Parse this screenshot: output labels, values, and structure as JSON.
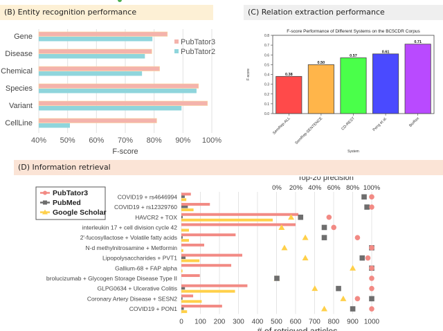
{
  "panels": {
    "b_title": "(B) Entity recognition performance",
    "c_title": "(C) Relation extraction performance",
    "d_title": "(D) Information retrieval"
  },
  "chart_data": [
    {
      "id": "entity",
      "type": "bar",
      "orientation": "horizontal",
      "title": "",
      "categories": [
        "Gene",
        "Disease",
        "Chemical",
        "Species",
        "Variant",
        "CellLine"
      ],
      "series": [
        {
          "name": "PubTator3",
          "color": "#f4b3ac",
          "values": [
            84.6,
            79.2,
            81.9,
            95.4,
            98.5,
            80.9
          ]
        },
        {
          "name": "PubTator2",
          "color": "#8fd5dc",
          "values": [
            79.4,
            76.8,
            75.8,
            94.7,
            89.5,
            50.8
          ]
        }
      ],
      "xlabel": "F-score",
      "ylabel": "",
      "xlim": [
        40,
        100
      ],
      "xticks": [
        "40%",
        "50%",
        "60%",
        "70%",
        "80%",
        "90%",
        "100%"
      ],
      "grid": true,
      "legend": "right"
    },
    {
      "id": "relation",
      "type": "bar",
      "title": "F-score Performance of Different Systems on the BC5CDR Corpus",
      "categories": [
        "SemRep-ALL",
        "SemRep-SENTENCE",
        "CD-REST",
        "Peng et al.",
        "BioRex"
      ],
      "values": [
        0.38,
        0.5,
        0.57,
        0.61,
        0.71
      ],
      "value_labels": [
        "0.38",
        "0.50",
        "0.57",
        "0.61",
        "0.71"
      ],
      "colors": [
        "#ff4a4a",
        "#ffb54a",
        "#4aff4a",
        "#4a4aff",
        "#b94aff"
      ],
      "xlabel": "System",
      "ylabel": "F-score",
      "ylim": [
        0,
        0.8
      ],
      "yticks": [
        "0.0",
        "0.1",
        "0.2",
        "0.3",
        "0.4",
        "0.5",
        "0.6",
        "0.7",
        "0.8"
      ],
      "grid": false
    },
    {
      "id": "retrieval",
      "type": "bar",
      "orientation": "horizontal",
      "categories": [
        "COVID19 + rs4646994",
        "COVID19 + rs12329760",
        "HAVCR2 + TOX",
        "interleukin 17 + cell division cycle 42",
        "2'-fucosyllactose + Volatile fatty acids",
        "N-d methylnitrosamine + Metformin",
        "Lipopolysaccharides + PVT1",
        "Gallium-68 + FAP alpha",
        "brolucizumab + Glycogen Storage Disease Type II",
        "GLPG0634 + Ulcerative Colitis",
        "Coronary Artery Disease + SESN2",
        "COVID19 + PON1"
      ],
      "series": [
        {
          "name": "PubTator3",
          "color": "#f28a84",
          "marker": "circle",
          "articles": [
            50,
            150,
            615,
            600,
            285,
            120,
            320,
            262,
            97,
            347,
            62,
            214
          ],
          "precision": [
            100,
            100,
            55,
            60,
            85,
            100,
            96,
            100,
            100,
            100,
            85,
            100
          ]
        },
        {
          "name": "PubMed",
          "color": "#6e6e6e",
          "marker": "square",
          "articles": [
            18,
            34,
            7,
            0,
            7,
            0,
            22,
            0,
            0,
            19,
            6,
            13
          ],
          "precision": [
            92,
            95,
            25,
            50,
            50,
            100,
            90,
            100,
            0,
            65,
            100,
            80
          ]
        },
        {
          "name": "Google Scholar",
          "color": "#ffd04a",
          "marker": "triangle",
          "articles": [
            26,
            64,
            480,
            40,
            40,
            10,
            95,
            6,
            0,
            282,
            107,
            30
          ],
          "precision": [
            null,
            null,
            15,
            5,
            30,
            8,
            30,
            80,
            0,
            40,
            70,
            50
          ]
        }
      ],
      "xlabel": "# of retrieved articles",
      "xlim": [
        0,
        1000
      ],
      "xticks": [
        "0",
        "100",
        "200",
        "300",
        "400",
        "500",
        "600",
        "700",
        "800",
        "900",
        "1000"
      ],
      "top_axis_title": "Top-20 precision",
      "top_xlim": [
        0,
        100
      ],
      "top_xticks": [
        "0%",
        "20%",
        "40%",
        "60%",
        "80%",
        "100%"
      ],
      "grid": true,
      "legend": "top-left"
    }
  ]
}
